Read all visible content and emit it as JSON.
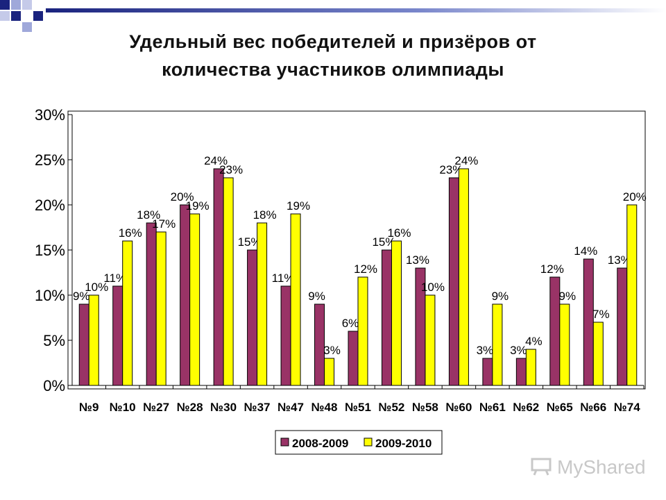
{
  "colors": {
    "series1": "#993366",
    "series2": "#ffff00",
    "deco_dark": "#1a237e",
    "deco_light": "#9fa8da"
  },
  "watermark_text": "MyShared",
  "chart_data": {
    "type": "bar",
    "title": "Удельный вес победителей и призёров от количества участников олимпиады",
    "title_lines": [
      "Удельный вес победителей и призёров от",
      "количества участников олимпиады"
    ],
    "xlabel": "",
    "ylabel": "",
    "ylim": [
      0,
      30
    ],
    "yticks": [
      "0%",
      "5%",
      "10%",
      "15%",
      "20%",
      "25%",
      "30%"
    ],
    "grid": false,
    "legend_position": "bottom",
    "categories": [
      "№9",
      "№10",
      "№27",
      "№28",
      "№30",
      "№37",
      "№47",
      "№48",
      "№51",
      "№52",
      "№58",
      "№60",
      "№61",
      "№62",
      "№65",
      "№66",
      "№74"
    ],
    "series": [
      {
        "name": "2008-2009",
        "values": [
          9,
          11,
          18,
          20,
          24,
          15,
          11,
          9,
          6,
          15,
          13,
          23,
          3,
          3,
          12,
          14,
          13
        ],
        "labels": [
          "9%",
          "11%",
          "18%",
          "20%",
          "24%",
          "15%",
          "11%",
          "9%",
          "6%",
          "15%",
          "13%",
          "23%",
          "3%",
          "3%",
          "12%",
          "14%",
          "13%"
        ]
      },
      {
        "name": "2009-2010",
        "values": [
          10,
          16,
          17,
          19,
          23,
          18,
          19,
          3,
          12,
          16,
          10,
          24,
          9,
          4,
          9,
          7,
          20
        ],
        "labels": [
          "10%",
          "16%",
          "17%",
          "19%",
          "23%",
          "18%",
          "19%",
          "3%",
          "12%",
          "16%",
          "10%",
          "24%",
          "9%",
          "4%",
          "9%",
          "7%",
          "20%"
        ]
      }
    ]
  }
}
